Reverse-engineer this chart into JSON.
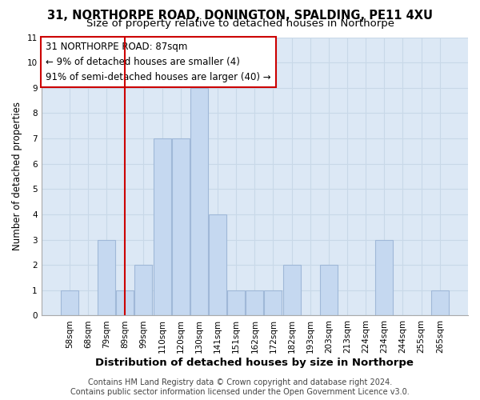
{
  "title": "31, NORTHORPE ROAD, DONINGTON, SPALDING, PE11 4XU",
  "subtitle": "Size of property relative to detached houses in Northorpe",
  "xlabel": "Distribution of detached houses by size in Northorpe",
  "ylabel": "Number of detached properties",
  "bar_labels": [
    "58sqm",
    "68sqm",
    "79sqm",
    "89sqm",
    "99sqm",
    "110sqm",
    "120sqm",
    "130sqm",
    "141sqm",
    "151sqm",
    "162sqm",
    "172sqm",
    "182sqm",
    "193sqm",
    "203sqm",
    "213sqm",
    "224sqm",
    "234sqm",
    "244sqm",
    "255sqm",
    "265sqm"
  ],
  "bar_values": [
    1,
    0,
    3,
    1,
    2,
    7,
    7,
    9,
    4,
    1,
    1,
    1,
    2,
    0,
    2,
    0,
    0,
    3,
    0,
    0,
    1
  ],
  "bar_color": "#c5d8f0",
  "bar_edge_color": "#a0b8d8",
  "vline_color": "#cc0000",
  "vline_index": 3,
  "ylim": [
    0,
    11
  ],
  "yticks": [
    0,
    1,
    2,
    3,
    4,
    5,
    6,
    7,
    8,
    9,
    10,
    11
  ],
  "annotation_lines": [
    "31 NORTHORPE ROAD: 87sqm",
    "← 9% of detached houses are smaller (4)",
    "91% of semi-detached houses are larger (40) →"
  ],
  "footer_lines": [
    "Contains HM Land Registry data © Crown copyright and database right 2024.",
    "Contains public sector information licensed under the Open Government Licence v3.0."
  ],
  "grid_color": "#c8d8e8",
  "plot_bg_color": "#dce8f5",
  "figure_bg_color": "#ffffff",
  "title_fontsize": 10.5,
  "subtitle_fontsize": 9.5,
  "xlabel_fontsize": 9.5,
  "ylabel_fontsize": 8.5,
  "tick_fontsize": 7.5,
  "ann_fontsize": 8.5,
  "footer_fontsize": 7.0
}
